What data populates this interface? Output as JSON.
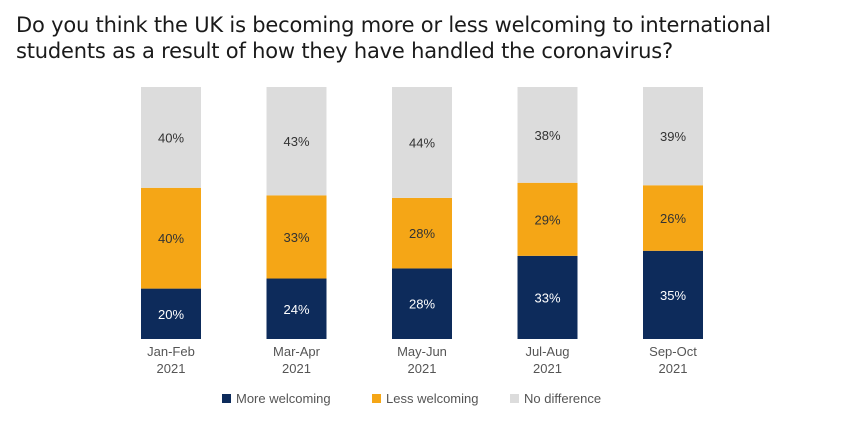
{
  "chart_data": {
    "type": "bar",
    "stacked": true,
    "title": "Do you think the UK is becoming more or less welcoming to international students as a result of how they have handled the coronavirus?",
    "categories": [
      [
        "Jan-Feb",
        "2021"
      ],
      [
        "Mar-Apr",
        "2021"
      ],
      [
        "May-Jun",
        "2021"
      ],
      [
        "Jul-Aug",
        "2021"
      ],
      [
        "Sep-Oct",
        "2021"
      ]
    ],
    "series": [
      {
        "name": "More welcoming",
        "color": "#0d2b5b",
        "values": [
          20,
          24,
          28,
          33,
          35
        ]
      },
      {
        "name": "Less welcoming",
        "color": "#f5a616",
        "values": [
          40,
          33,
          28,
          29,
          26
        ]
      },
      {
        "name": "No difference",
        "color": "#dcdcdc",
        "values": [
          40,
          43,
          44,
          38,
          39
        ]
      }
    ],
    "value_suffix": "%",
    "ylim": [
      0,
      100
    ],
    "grid": false,
    "legend": "bottom"
  }
}
